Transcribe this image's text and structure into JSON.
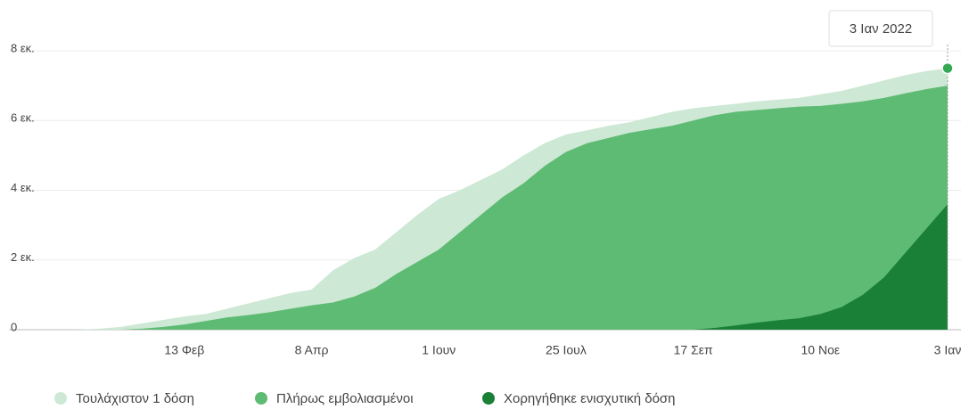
{
  "chart_data": {
    "type": "area",
    "tooltip": "3 Ιαν 2022",
    "categories": [
      null,
      null,
      null,
      null,
      null,
      "13 Φεβ",
      null,
      null,
      null,
      null,
      null,
      "8 Απρ",
      null,
      null,
      null,
      null,
      null,
      "1 Ιουν",
      null,
      null,
      null,
      null,
      null,
      "25 Ιουλ",
      null,
      null,
      null,
      null,
      null,
      "17 Σεπ",
      null,
      null,
      null,
      null,
      null,
      "10 Νοε",
      null,
      null,
      null,
      null,
      null,
      "3 Ιαν"
    ],
    "series": [
      {
        "name": "Τουλάχιστον 1 δόση",
        "color": "#cde8d4",
        "values": [
          0,
          0.03,
          0.08,
          0.18,
          0.28,
          0.38,
          0.45,
          0.6,
          0.75,
          0.9,
          1.05,
          1.15,
          1.7,
          2.05,
          2.3,
          2.8,
          3.3,
          3.75,
          4.0,
          4.3,
          4.6,
          5.0,
          5.35,
          5.6,
          5.72,
          5.85,
          5.95,
          6.1,
          6.25,
          6.35,
          6.42,
          6.48,
          6.55,
          6.6,
          6.65,
          6.75,
          6.85,
          7.0,
          7.15,
          7.3,
          7.42,
          7.5
        ]
      },
      {
        "name": "Πλήρως εμβολιασμένοι",
        "color": "#5ebb73",
        "values": [
          0,
          0,
          0,
          0.03,
          0.08,
          0.15,
          0.25,
          0.35,
          0.42,
          0.5,
          0.6,
          0.7,
          0.78,
          0.95,
          1.2,
          1.6,
          1.95,
          2.3,
          2.8,
          3.3,
          3.8,
          4.2,
          4.7,
          5.1,
          5.35,
          5.5,
          5.65,
          5.75,
          5.85,
          6.0,
          6.15,
          6.25,
          6.3,
          6.35,
          6.4,
          6.42,
          6.48,
          6.55,
          6.65,
          6.78,
          6.9,
          7.0
        ]
      },
      {
        "name": "Χορηγήθηκε ενισχυτική δόση",
        "color": "#1a7f37",
        "values": [
          0,
          0,
          0,
          0,
          0,
          0,
          0,
          0,
          0,
          0,
          0,
          0,
          0,
          0,
          0,
          0,
          0,
          0,
          0,
          0,
          0,
          0,
          0,
          0,
          0,
          0,
          0,
          0,
          0,
          0,
          0.05,
          0.12,
          0.2,
          0.27,
          0.33,
          0.45,
          0.65,
          1.0,
          1.5,
          2.2,
          2.9,
          3.6
        ]
      }
    ],
    "ylim": [
      0,
      8
    ],
    "yticks": [
      0,
      {
        "value": 2,
        "label": "2 εκ."
      },
      {
        "value": 4,
        "label": "4 εκ."
      },
      {
        "value": 6,
        "label": "6 εκ."
      },
      {
        "value": 8,
        "label": "8 εκ."
      }
    ],
    "grid": true
  }
}
